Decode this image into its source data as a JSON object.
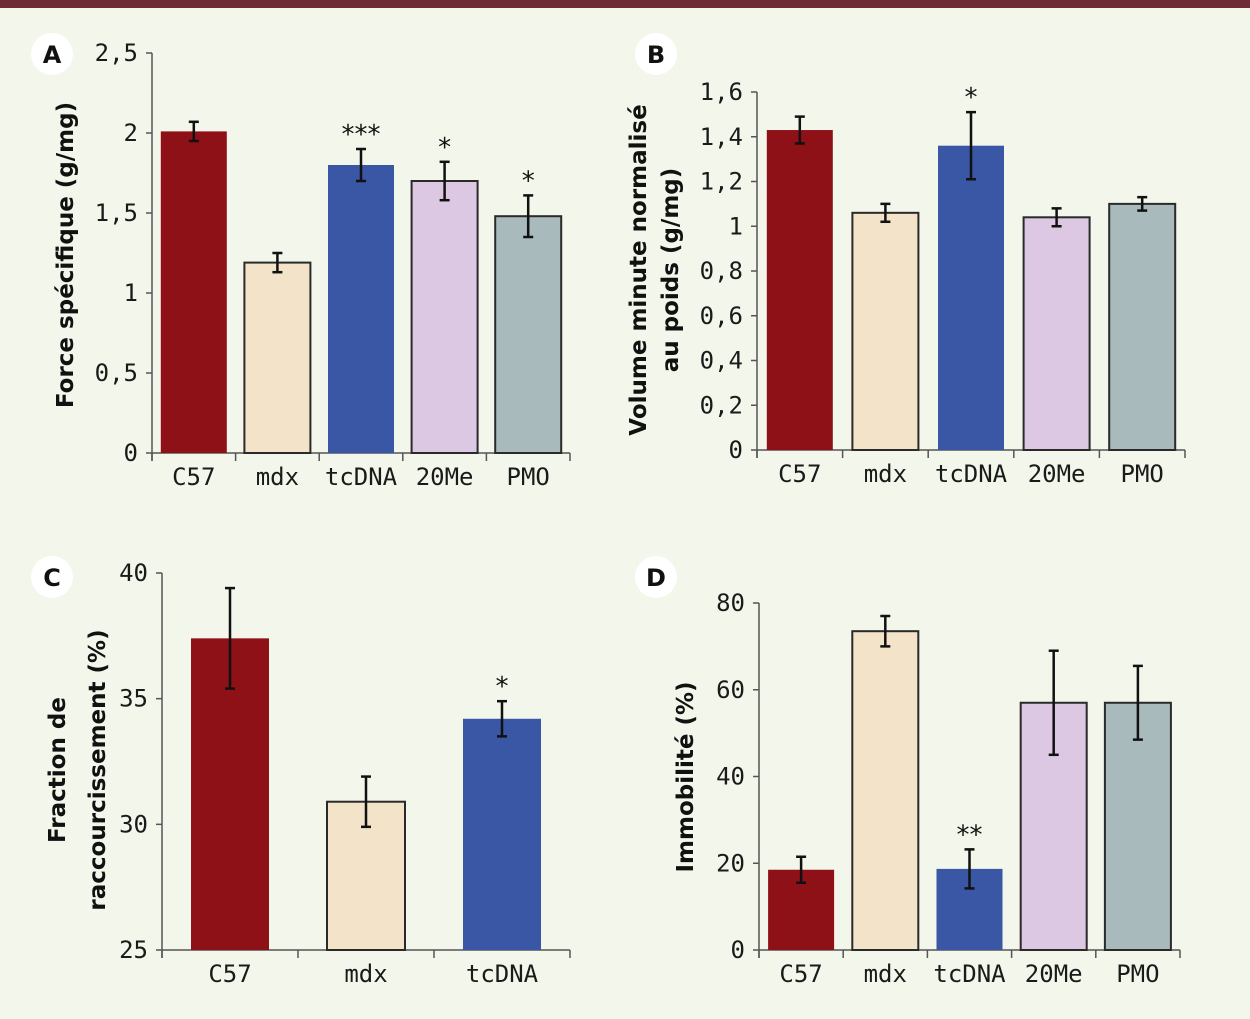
{
  "chart_data": [
    {
      "type": "bar",
      "panel": "A",
      "title": "",
      "xlabel": "",
      "ylabel": "Force spécifique (g/mg)",
      "categories": [
        "C57",
        "mdx",
        "tcDNA",
        "20Me",
        "PMO"
      ],
      "values": [
        2.01,
        1.19,
        1.8,
        1.7,
        1.48
      ],
      "errors": [
        0.06,
        0.06,
        0.1,
        0.12,
        0.13
      ],
      "significance": [
        "",
        "",
        "***",
        "*",
        "*"
      ],
      "ylim": [
        0,
        2.5
      ],
      "yticks": [
        "0",
        "0,5",
        "1",
        "1,5",
        "2",
        "2,5"
      ],
      "ytick_values": [
        0,
        0.5,
        1,
        1.5,
        2,
        2.5
      ],
      "grid": false,
      "legend": "none"
    },
    {
      "type": "bar",
      "panel": "B",
      "title": "",
      "xlabel": "",
      "ylabel": [
        "Volume minute normalisé",
        "au poids (g/mg)"
      ],
      "categories": [
        "C57",
        "mdx",
        "tcDNA",
        "20Me",
        "PMO"
      ],
      "values": [
        1.43,
        1.06,
        1.36,
        1.04,
        1.1
      ],
      "errors": [
        0.06,
        0.04,
        0.15,
        0.04,
        0.03
      ],
      "significance": [
        "",
        "",
        "*",
        "",
        ""
      ],
      "ylim": [
        0,
        1.6
      ],
      "yticks": [
        "0",
        "0,2",
        "0,4",
        "0,6",
        "0,8",
        "1",
        "1,2",
        "1,4",
        "1,6"
      ],
      "ytick_values": [
        0,
        0.2,
        0.4,
        0.6,
        0.8,
        1.0,
        1.2,
        1.4,
        1.6
      ],
      "grid": false,
      "legend": "none"
    },
    {
      "type": "bar",
      "panel": "C",
      "title": "",
      "xlabel": "",
      "ylabel": [
        "Fraction de",
        "raccourcissement (%)"
      ],
      "categories": [
        "C57",
        "mdx",
        "tcDNA"
      ],
      "values": [
        37.4,
        30.9,
        34.2
      ],
      "errors": [
        2.0,
        1.0,
        0.7
      ],
      "significance": [
        "",
        "",
        "*"
      ],
      "ylim": [
        25,
        40
      ],
      "yticks": [
        "25",
        "30",
        "35",
        "40"
      ],
      "ytick_values": [
        25,
        30,
        35,
        40
      ],
      "grid": false,
      "legend": "none"
    },
    {
      "type": "bar",
      "panel": "D",
      "title": "",
      "xlabel": "",
      "ylabel": "Immobilité (%)",
      "categories": [
        "C57",
        "mdx",
        "tcDNA",
        "20Me",
        "PMO"
      ],
      "values": [
        18.5,
        73.5,
        18.7,
        57.0,
        57.0
      ],
      "errors": [
        3.0,
        3.5,
        4.5,
        12.0,
        8.5
      ],
      "significance": [
        "",
        "",
        "**",
        "",
        ""
      ],
      "ylim": [
        0,
        80
      ],
      "yticks": [
        "0",
        "20",
        "40",
        "60",
        "80"
      ],
      "ytick_values": [
        0,
        20,
        40,
        60,
        80
      ],
      "grid": false,
      "legend": "none"
    }
  ],
  "colors": {
    "C57": "#8f1118",
    "mdx": "#f3e3c8",
    "tcDNA": "#3a57a5",
    "20Me": "#dcc8e2",
    "PMO": "#a9babc",
    "header_bar": "#6e2c36",
    "background": "#f3f6ea"
  }
}
